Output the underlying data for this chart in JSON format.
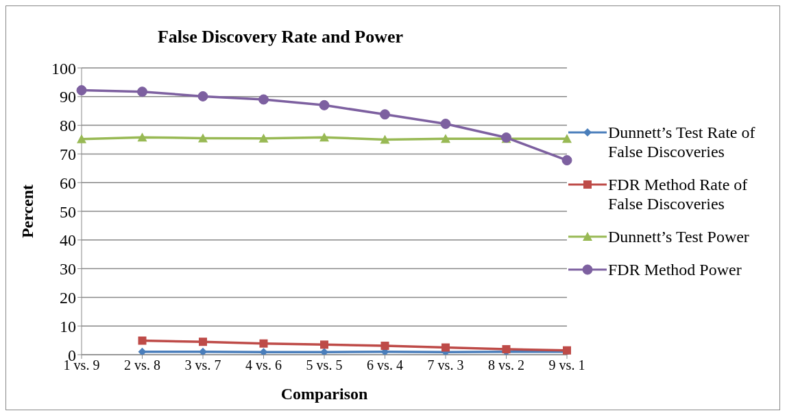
{
  "chart_data": {
    "type": "line",
    "title": "False Discovery Rate and Power",
    "xlabel": "Comparison",
    "ylabel": "Percent",
    "categories": [
      "1 vs. 9",
      "2 vs. 8",
      "3 vs. 7",
      "4 vs. 6",
      "5 vs. 5",
      "6 vs. 4",
      "7 vs. 3",
      "8 vs. 2",
      "9 vs. 1"
    ],
    "series": [
      {
        "name": "Dunnett’s Test Rate of False Discoveries",
        "color": "#4a7ebb",
        "marker": "diamond",
        "values": [
          null,
          1.0,
          1.0,
          0.9,
          0.9,
          1.0,
          0.9,
          1.0,
          1.0
        ]
      },
      {
        "name": "FDR Method Rate of False Discoveries",
        "color": "#be4b48",
        "marker": "square",
        "values": [
          null,
          4.9,
          4.5,
          3.9,
          3.5,
          3.1,
          2.5,
          1.9,
          1.5
        ]
      },
      {
        "name": "Dunnett’s Test Power",
        "color": "#98b954",
        "marker": "triangle",
        "values": [
          75.2,
          75.8,
          75.5,
          75.4,
          75.8,
          75.0,
          75.3,
          75.3,
          75.3
        ]
      },
      {
        "name": "FDR Method Power",
        "color": "#7d60a0",
        "marker": "circle",
        "values": [
          92.2,
          91.7,
          90.1,
          89.0,
          87.0,
          83.8,
          80.5,
          75.7,
          67.8
        ]
      }
    ],
    "ylim": [
      0,
      100
    ],
    "yticks": [
      0,
      10,
      20,
      30,
      40,
      50,
      60,
      70,
      80,
      90,
      100
    ],
    "grid": "y",
    "legend": "right",
    "line_style": "solid"
  }
}
